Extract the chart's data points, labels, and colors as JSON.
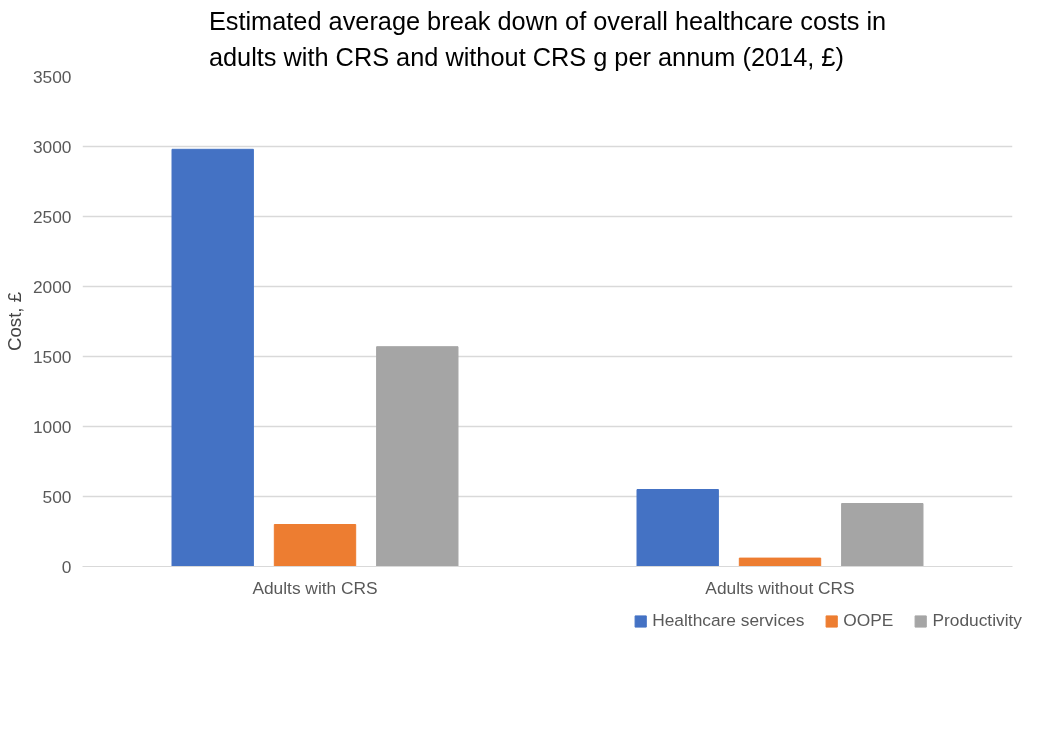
{
  "chart_data": {
    "type": "bar",
    "title": "Estimated average break down of overall healthcare costs in\nadults with CRS and without CRS g per annum (2014, £)",
    "ylabel": "Cost, £",
    "categories": [
      "Adults with CRS",
      "Adults without CRS"
    ],
    "series": [
      {
        "name": "Healthcare services",
        "color": "#4472c4",
        "values": [
          2980,
          550
        ]
      },
      {
        "name": "OOPE",
        "color": "#ed7d31",
        "values": [
          300,
          60
        ]
      },
      {
        "name": "Productivity",
        "color": "#a5a5a5",
        "values": [
          1570,
          450
        ]
      }
    ],
    "ylim": [
      0,
      3500
    ],
    "yticks": [
      0,
      500,
      1000,
      1500,
      2000,
      2500,
      3000,
      3500
    ],
    "grid": "y",
    "legend": "bottom"
  }
}
